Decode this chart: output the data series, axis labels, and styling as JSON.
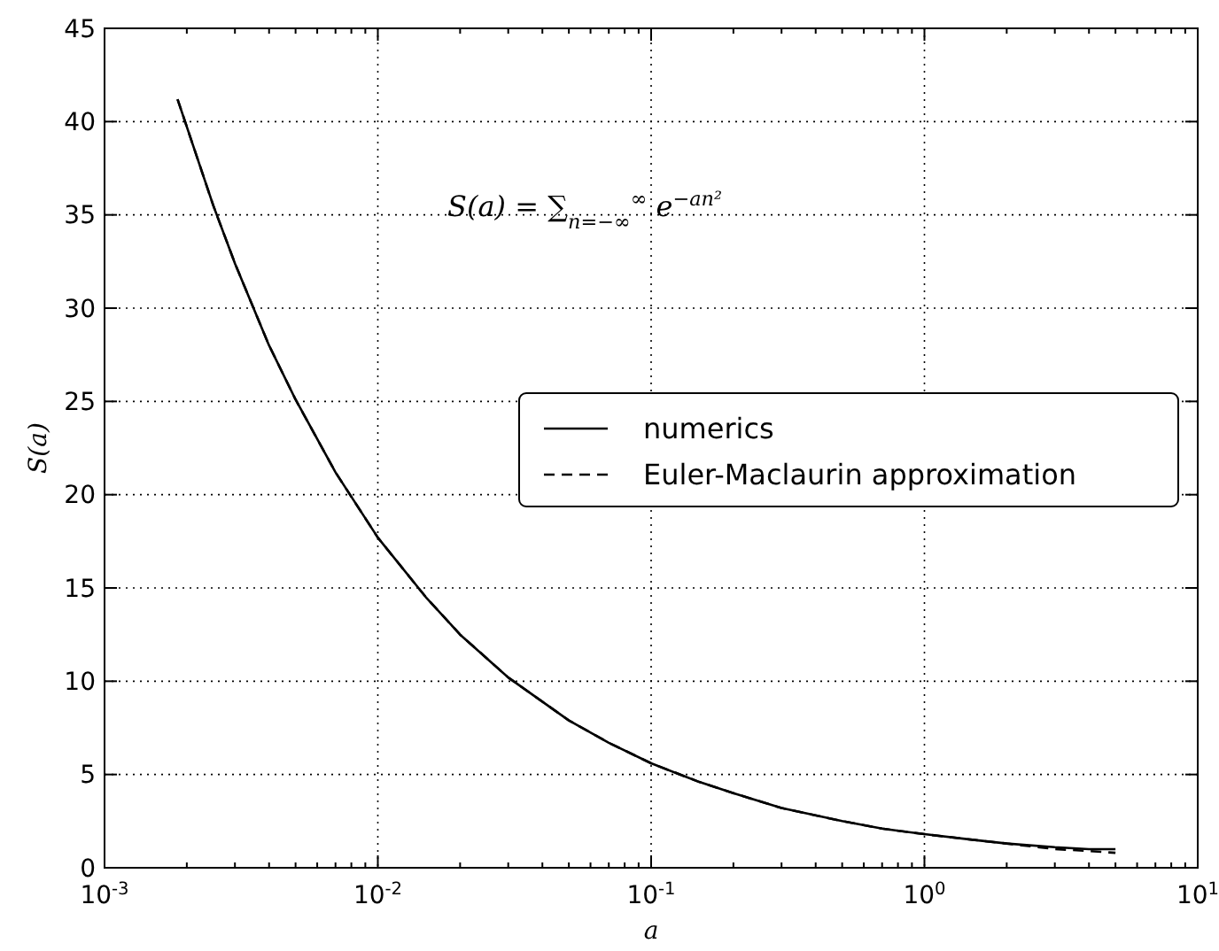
{
  "chart_data": {
    "type": "line",
    "xlabel": "a",
    "ylabel": "S(a)",
    "log": "x",
    "grid": true,
    "legend": "right",
    "annotations": [
      "S(a) = ∑$_{n=−∞}$$^{∞}$ e$^{−an²}$"
    ],
    "xlim": [
      0.001,
      10
    ],
    "ylim": [
      0,
      45
    ],
    "xticks": [
      {
        "value": 0.001,
        "label": "10$^{-3}$"
      },
      {
        "value": 0.01,
        "label": "10$^{-2}$"
      },
      {
        "value": 0.1,
        "label": "10$^{-1}$"
      },
      {
        "value": 1,
        "label": "10$^{0}$"
      },
      {
        "value": 10,
        "label": "10$^{1}$"
      }
    ],
    "yticks": [
      0,
      5,
      10,
      15,
      20,
      25,
      30,
      35,
      40,
      45
    ],
    "x": [
      0.00185,
      0.0025,
      0.003,
      0.004,
      0.005,
      0.007,
      0.01,
      0.015,
      0.02,
      0.03,
      0.05,
      0.07,
      0.1,
      0.15,
      0.2,
      0.3,
      0.5,
      0.7,
      1,
      1.5,
      2,
      3,
      4,
      5
    ],
    "series": [
      {
        "name": "numerics",
        "color": "#000000",
        "line_style": "solid",
        "values": [
          41.2,
          35.5,
          32.4,
          28,
          25.1,
          21.2,
          17.7,
          14.5,
          12.5,
          10.2,
          7.9,
          6.7,
          5.6,
          4.6,
          4,
          3.2,
          2.5,
          2.1,
          1.8,
          1.5,
          1.3,
          1.1,
          1,
          1
        ]
      },
      {
        "name": "Euler-Maclaurin approximation",
        "color": "#000000",
        "line_style": "dashed",
        "values": [
          41.2,
          35.5,
          32.4,
          28,
          25.1,
          21.2,
          17.7,
          14.5,
          12.5,
          10.2,
          7.9,
          6.7,
          5.6,
          4.6,
          4,
          3.2,
          2.5,
          2.1,
          1.8,
          1.5,
          1.3,
          1,
          0.9,
          0.8
        ]
      }
    ]
  }
}
